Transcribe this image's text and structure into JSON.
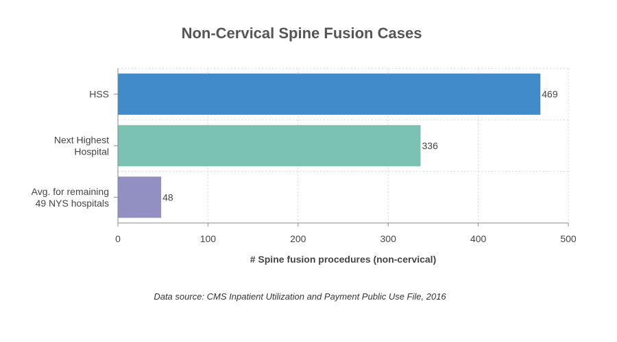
{
  "chart_data": {
    "type": "bar",
    "orientation": "horizontal",
    "title": "Non-Cervical Spine Fusion Cases",
    "xlabel": "# Spine fusion procedures (non-cervical)",
    "ylabel": "",
    "categories": [
      [
        "HSS"
      ],
      [
        "Next Highest",
        "Hospital"
      ],
      [
        "Avg. for remaining",
        "49 NYS hospitals"
      ]
    ],
    "values": [
      469,
      336,
      48
    ],
    "bar_colors": [
      "#428bca",
      "#7cc2b2",
      "#9290c2"
    ],
    "xlim": [
      0,
      500
    ],
    "xticks": [
      0,
      100,
      200,
      300,
      400,
      500
    ],
    "grid": true,
    "legend": "none",
    "source": "Data source: CMS Inpatient Utilization and Payment Public Use File, 2016"
  },
  "colors": {
    "axis": "#888888",
    "grid": "#d6d6d6",
    "title": "#555555",
    "label": "#444444"
  }
}
